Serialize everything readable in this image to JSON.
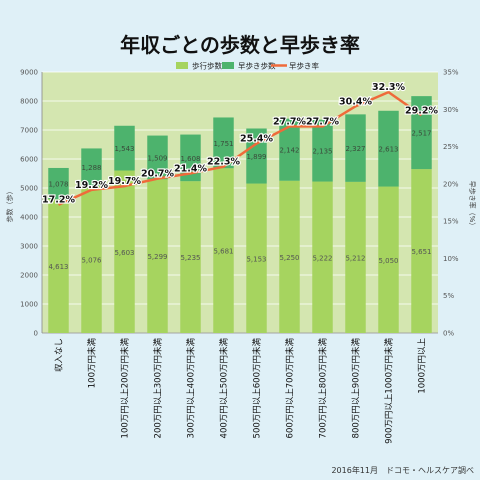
{
  "chart_data": {
    "type": "bar",
    "title": "年収ごとの歩数と早歩き率",
    "ylabel_left": "歩数（歩）",
    "ylabel_right": "早歩き率（%）",
    "ylim_left": [
      0,
      9000
    ],
    "ylim_right": [
      0,
      35
    ],
    "yticks_left": [
      "0",
      "1000",
      "2000",
      "3000",
      "4000",
      "5000",
      "6000",
      "7000",
      "8000",
      "9000"
    ],
    "yticks_right": [
      "0%",
      "5%",
      "10%",
      "15%",
      "20%",
      "25%",
      "30%",
      "35%"
    ],
    "legend_position": "top",
    "grid": true,
    "categories": [
      "収入なし",
      "100万円未満",
      "100万円以上200万円未満",
      "200万円以上300万円未満",
      "300万円以上400万円未満",
      "400万円以上500万円未満",
      "500万円以上600万円未満",
      "600万円以上700万円未満",
      "700万円以上800万円未満",
      "800万円以上900万円未満",
      "900万円以上1000万円未満",
      "1000万円以上"
    ],
    "series": [
      {
        "name": "歩行歩数",
        "type": "bar-stacked",
        "color": "#a6d45f",
        "values": [
          4613,
          5076,
          5603,
          5299,
          5235,
          5681,
          5153,
          5250,
          5222,
          5212,
          5050,
          5651
        ],
        "labels": [
          "4,613",
          "5,076",
          "5,603",
          "5,299",
          "5,235",
          "5,681",
          "5,153",
          "5,250",
          "5,222",
          "5,212",
          "5,050",
          "5,651"
        ]
      },
      {
        "name": "早歩き歩数",
        "type": "bar-stacked",
        "color": "#4db36d",
        "values": [
          1078,
          1288,
          1543,
          1509,
          1608,
          1751,
          1899,
          2142,
          2135,
          2327,
          2613,
          2517
        ],
        "labels": [
          "1,078",
          "1,288",
          "1,543",
          "1,509",
          "1,608",
          "1,751",
          "1,899",
          "2,142",
          "2,135",
          "2,327",
          "2,613",
          "2,517"
        ]
      },
      {
        "name": "早歩き率",
        "type": "line",
        "color": "#ef6a3a",
        "axis": "right",
        "values": [
          17.2,
          19.2,
          19.7,
          20.7,
          21.4,
          22.3,
          25.4,
          27.7,
          27.7,
          30.4,
          32.3,
          29.2
        ],
        "labels": [
          "17.2%",
          "19.2%",
          "19.7%",
          "20.7%",
          "21.4%",
          "22.3%",
          "25.4%",
          "27.7%",
          "27.7%",
          "30.4%",
          "32.3%",
          "29.2%"
        ]
      }
    ]
  },
  "footer": "2016年11月　ドコモ・ヘルスケア調べ"
}
